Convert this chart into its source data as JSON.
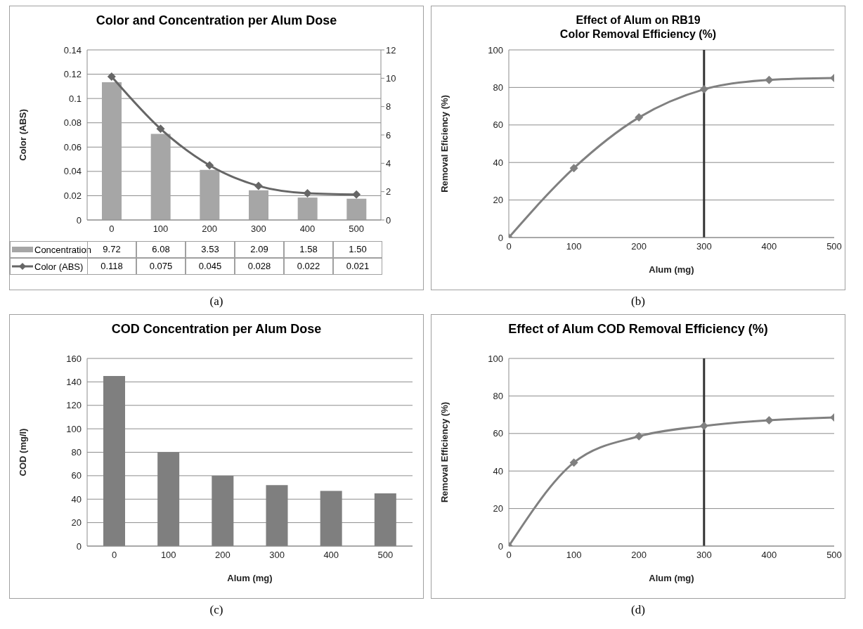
{
  "chart_data": [
    {
      "type": "bar",
      "title": "Color and Concentration per Alum Dose",
      "ylabel": "Color (ABS)",
      "categories": [
        "0",
        "100",
        "200",
        "300",
        "400",
        "500"
      ],
      "series": [
        {
          "name": "Concentration",
          "axis": "y2",
          "color": "#a6a6a6",
          "values": [
            9.72,
            6.08,
            3.53,
            2.09,
            1.58,
            1.5
          ],
          "value_labels": [
            "9.72",
            "6.08",
            "3.53",
            "2.09",
            "1.58",
            "1.50"
          ]
        },
        {
          "name": "Color (ABS)",
          "type": "line",
          "color": "#666666",
          "values": [
            0.118,
            0.075,
            0.045,
            0.028,
            0.022,
            0.021
          ],
          "value_labels": [
            "0.118",
            "0.075",
            "0.045",
            "0.028",
            "0.022",
            "0.021"
          ]
        }
      ],
      "ylim": [
        0,
        0.14
      ],
      "yticks": [
        0,
        0.02,
        0.04,
        0.06,
        0.08,
        0.1,
        0.12,
        0.14
      ],
      "y2lim": [
        0,
        12
      ],
      "y2ticks": [
        0,
        2,
        4,
        6,
        8,
        10,
        12
      ],
      "grid": "y",
      "legend": "bottom",
      "marker": "diamond",
      "annotations": [
        "(a)"
      ]
    },
    {
      "type": "line",
      "title": "Effect of Alum on RB19\nColor Removal Efficiency (%)",
      "xlabel": "Alum (mg)",
      "ylabel": "Removal Eficiency (%)",
      "x": [
        0,
        100,
        200,
        300,
        400,
        500
      ],
      "series": [
        {
          "color": "#808080",
          "values": [
            0,
            37,
            64,
            79,
            84,
            85
          ]
        }
      ],
      "xlim": [
        0,
        500
      ],
      "xticks": [
        0,
        100,
        200,
        300,
        400,
        500
      ],
      "ylim": [
        0,
        100
      ],
      "yticks": [
        0,
        20,
        40,
        60,
        80,
        100
      ],
      "grid": "y",
      "marker": "diamond",
      "ref_lines": [
        {
          "axis": "x",
          "value": 300,
          "color": "#333333"
        }
      ],
      "annotations": [
        "(b)"
      ]
    },
    {
      "type": "bar",
      "title": "COD Concentration per Alum Dose",
      "xlabel": "Alum (mg)",
      "ylabel": "COD (mg/l)",
      "categories": [
        "0",
        "100",
        "200",
        "300",
        "400",
        "500"
      ],
      "values": [
        145,
        80,
        60,
        52,
        47,
        45
      ],
      "color": "#7f7f7f",
      "ylim": [
        0,
        160
      ],
      "yticks": [
        0,
        20,
        40,
        60,
        80,
        100,
        120,
        140,
        160
      ],
      "grid": "y",
      "annotations": [
        "(c)"
      ]
    },
    {
      "type": "line",
      "title": "Effect of Alum COD Removal Efficiency (%)",
      "xlabel": "Alum (mg)",
      "ylabel": "Removal Efficiency (%)",
      "x": [
        0,
        100,
        200,
        300,
        400,
        500
      ],
      "series": [
        {
          "color": "#808080",
          "values": [
            0,
            44.5,
            58.5,
            64,
            67,
            68.5
          ]
        }
      ],
      "xlim": [
        0,
        500
      ],
      "xticks": [
        0,
        100,
        200,
        300,
        400,
        500
      ],
      "ylim": [
        0,
        100
      ],
      "yticks": [
        0,
        20,
        40,
        60,
        80,
        100
      ],
      "grid": "y",
      "marker": "diamond",
      "ref_lines": [
        {
          "axis": "x",
          "value": 300,
          "color": "#333333"
        }
      ],
      "annotations": [
        "(d)"
      ]
    }
  ]
}
